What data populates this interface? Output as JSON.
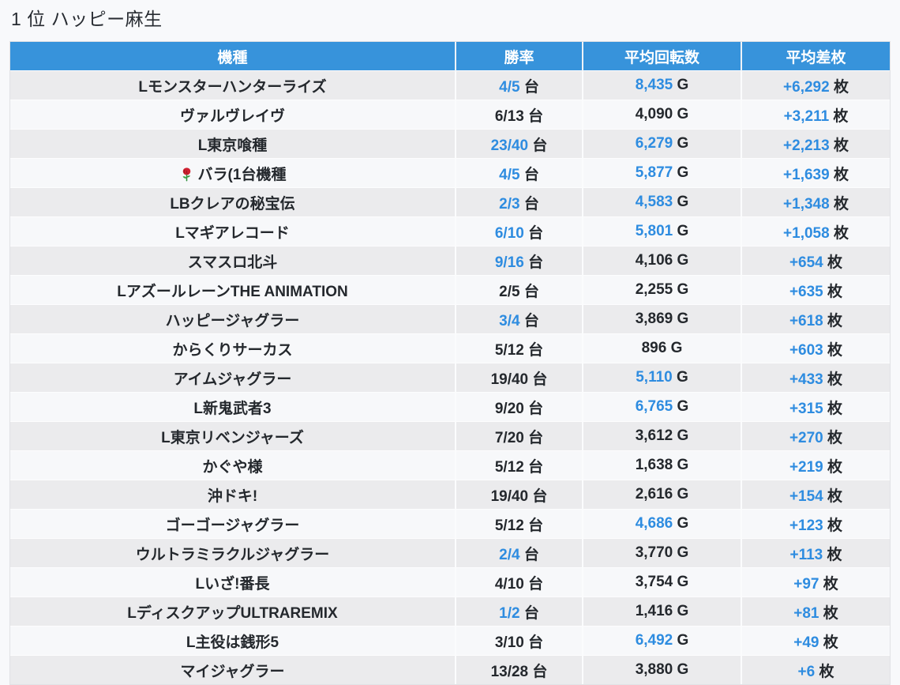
{
  "page": {
    "title": "1 位 ハッピー麻生"
  },
  "colors": {
    "header_bg": "#3793db",
    "accent_blue": "#2e8ce0",
    "row_odd": "#ebebed",
    "row_even": "#f7f8fa",
    "page_bg": "#f8f9fb",
    "text_dark": "#24282d"
  },
  "table": {
    "headers": [
      "機種",
      "勝率",
      "平均回転数",
      "平均差枚"
    ],
    "units": {
      "win_rate": "台",
      "spins": "G",
      "diff": "枚"
    },
    "rows": [
      {
        "machine": "Lモンスターハンターライズ",
        "win_rate": "4/5",
        "win_rate_blue": true,
        "spins": "8,435",
        "spins_blue": true,
        "diff": "+6,292",
        "diff_blue": true
      },
      {
        "machine": "ヴァルヴレイヴ",
        "win_rate": "6/13",
        "win_rate_blue": false,
        "spins": "4,090",
        "spins_blue": false,
        "diff": "+3,211",
        "diff_blue": true
      },
      {
        "machine": "L東京喰種",
        "win_rate": "23/40",
        "win_rate_blue": true,
        "spins": "6,279",
        "spins_blue": true,
        "diff": "+2,213",
        "diff_blue": true
      },
      {
        "machine": "バラ(1台機種",
        "icon": "rose-icon",
        "win_rate": "4/5",
        "win_rate_blue": true,
        "spins": "5,877",
        "spins_blue": true,
        "diff": "+1,639",
        "diff_blue": true
      },
      {
        "machine": "LBクレアの秘宝伝",
        "win_rate": "2/3",
        "win_rate_blue": true,
        "spins": "4,583",
        "spins_blue": true,
        "diff": "+1,348",
        "diff_blue": true
      },
      {
        "machine": "Lマギアレコード",
        "win_rate": "6/10",
        "win_rate_blue": true,
        "spins": "5,801",
        "spins_blue": true,
        "diff": "+1,058",
        "diff_blue": true
      },
      {
        "machine": "スマスロ北斗",
        "win_rate": "9/16",
        "win_rate_blue": true,
        "spins": "4,106",
        "spins_blue": false,
        "diff": "+654",
        "diff_blue": true
      },
      {
        "machine": "LアズールレーンTHE ANIMATION",
        "win_rate": "2/5",
        "win_rate_blue": false,
        "spins": "2,255",
        "spins_blue": false,
        "diff": "+635",
        "diff_blue": true
      },
      {
        "machine": "ハッピージャグラー",
        "win_rate": "3/4",
        "win_rate_blue": true,
        "spins": "3,869",
        "spins_blue": false,
        "diff": "+618",
        "diff_blue": true
      },
      {
        "machine": "からくりサーカス",
        "win_rate": "5/12",
        "win_rate_blue": false,
        "spins": "896",
        "spins_blue": false,
        "diff": "+603",
        "diff_blue": true
      },
      {
        "machine": "アイムジャグラー",
        "win_rate": "19/40",
        "win_rate_blue": false,
        "spins": "5,110",
        "spins_blue": true,
        "diff": "+433",
        "diff_blue": true
      },
      {
        "machine": "L新鬼武者3",
        "win_rate": "9/20",
        "win_rate_blue": false,
        "spins": "6,765",
        "spins_blue": true,
        "diff": "+315",
        "diff_blue": true
      },
      {
        "machine": "L東京リベンジャーズ",
        "win_rate": "7/20",
        "win_rate_blue": false,
        "spins": "3,612",
        "spins_blue": false,
        "diff": "+270",
        "diff_blue": true
      },
      {
        "machine": "かぐや様",
        "win_rate": "5/12",
        "win_rate_blue": false,
        "spins": "1,638",
        "spins_blue": false,
        "diff": "+219",
        "diff_blue": true
      },
      {
        "machine": "沖ドキ!",
        "win_rate": "19/40",
        "win_rate_blue": false,
        "spins": "2,616",
        "spins_blue": false,
        "diff": "+154",
        "diff_blue": true
      },
      {
        "machine": "ゴーゴージャグラー",
        "win_rate": "5/12",
        "win_rate_blue": false,
        "spins": "4,686",
        "spins_blue": true,
        "diff": "+123",
        "diff_blue": true
      },
      {
        "machine": "ウルトラミラクルジャグラー",
        "win_rate": "2/4",
        "win_rate_blue": true,
        "spins": "3,770",
        "spins_blue": false,
        "diff": "+113",
        "diff_blue": true
      },
      {
        "machine": "Lいざ!番長",
        "win_rate": "4/10",
        "win_rate_blue": false,
        "spins": "3,754",
        "spins_blue": false,
        "diff": "+97",
        "diff_blue": true
      },
      {
        "machine": "LディスクアップULTRAREMIX",
        "win_rate": "1/2",
        "win_rate_blue": true,
        "spins": "1,416",
        "spins_blue": false,
        "diff": "+81",
        "diff_blue": true
      },
      {
        "machine": "L主役は銭形5",
        "win_rate": "3/10",
        "win_rate_blue": false,
        "spins": "6,492",
        "spins_blue": true,
        "diff": "+49",
        "diff_blue": true
      },
      {
        "machine": "マイジャグラー",
        "win_rate": "13/28",
        "win_rate_blue": false,
        "spins": "3,880",
        "spins_blue": false,
        "diff": "+6",
        "diff_blue": true
      }
    ]
  }
}
